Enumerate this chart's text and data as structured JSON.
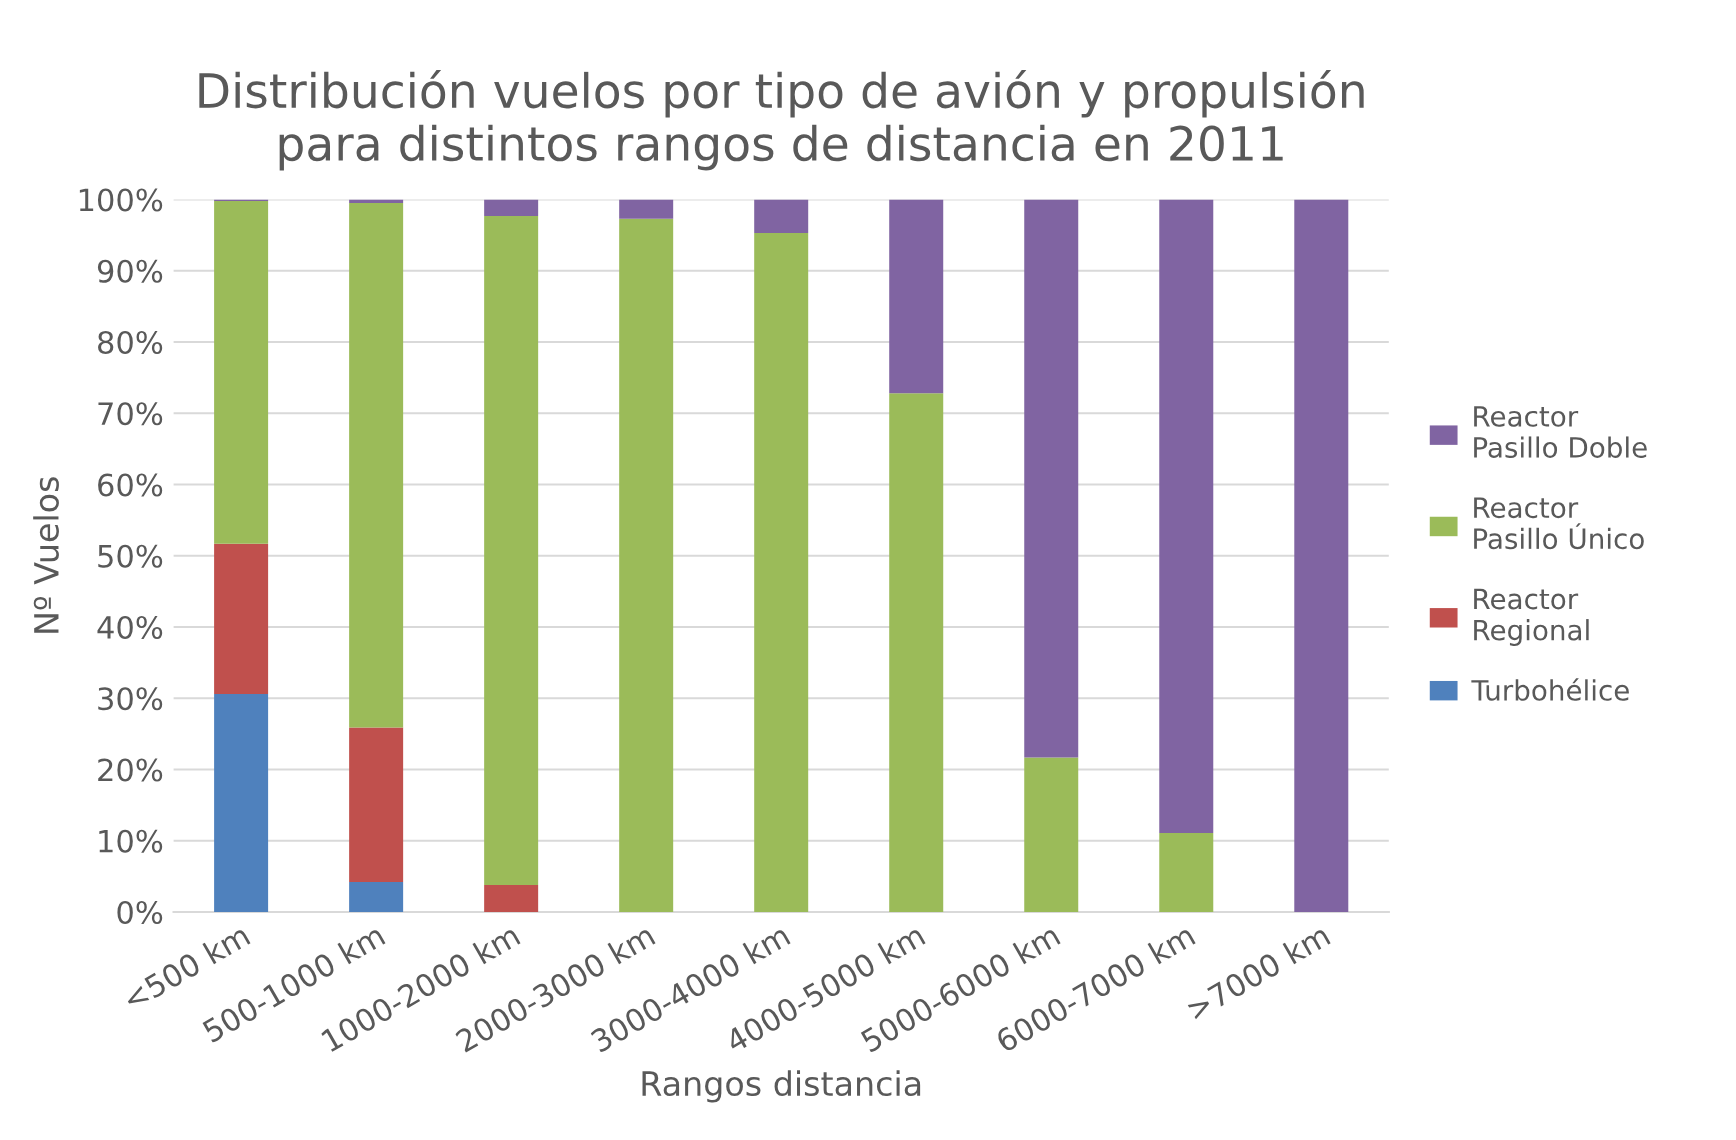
{
  "chart_data": {
    "type": "bar",
    "stacked": true,
    "title": "Distribución vuelos por tipo de avión y propulsión\npara distintos rangos de distancia en 2011",
    "xlabel": "Rangos distancia",
    "ylabel": "Nº Vuelos",
    "categories": [
      "<500 km",
      "500-1000 km",
      "1000-2000 km",
      "2000-3000 km",
      "3000-4000 km",
      "4000-5000 km",
      "5000-6000 km",
      "6000-7000 km",
      ">7000 km"
    ],
    "series": [
      {
        "name": "Turbohélice",
        "color": "#4f81bd",
        "values": [
          30.6,
          4.2,
          0,
          0,
          0,
          0,
          0,
          0,
          0
        ]
      },
      {
        "name": "Reactor\nRegional",
        "color": "#c0504d",
        "values": [
          21.1,
          21.7,
          3.8,
          0,
          0,
          0,
          0,
          0,
          0
        ]
      },
      {
        "name": "Reactor\nPasillo Único",
        "color": "#9bbb59",
        "values": [
          48.1,
          73.6,
          93.9,
          97.3,
          95.3,
          72.8,
          21.7,
          11.1,
          0
        ]
      },
      {
        "name": "Reactor\nPasillo Doble",
        "color": "#8064a2",
        "values": [
          0.2,
          0.5,
          2.3,
          2.7,
          4.7,
          27.2,
          78.3,
          88.9,
          100
        ]
      }
    ],
    "ylim": [
      0,
      100
    ],
    "yticks": [
      {
        "value": 0,
        "label": "0%"
      },
      {
        "value": 10,
        "label": "10%"
      },
      {
        "value": 20,
        "label": "20%"
      },
      {
        "value": 30,
        "label": "30%"
      },
      {
        "value": 40,
        "label": "40%"
      },
      {
        "value": 50,
        "label": "50%"
      },
      {
        "value": 60,
        "label": "60%"
      },
      {
        "value": 70,
        "label": "70%"
      },
      {
        "value": 80,
        "label": "80%"
      },
      {
        "value": 90,
        "label": "90%"
      },
      {
        "value": 100,
        "label": "100%"
      }
    ],
    "grid": "y",
    "legend": "right"
  }
}
